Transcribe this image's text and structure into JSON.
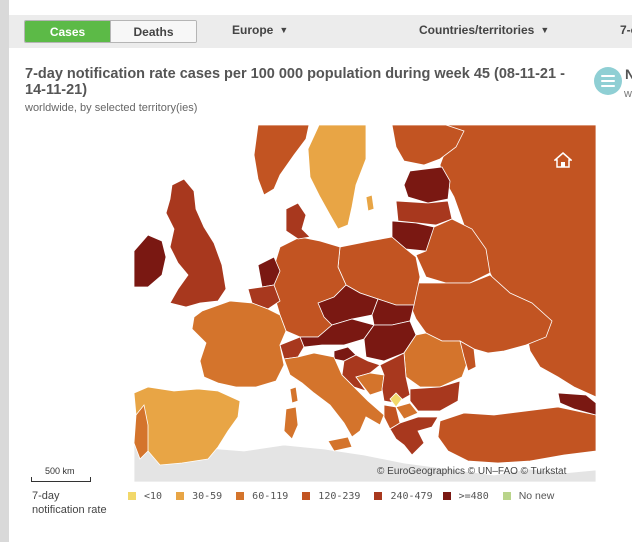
{
  "toolbar": {
    "cases_label": "Cases",
    "deaths_label": "Deaths",
    "region_label": "Europe",
    "countries_label": "Countries/territories",
    "clipped_label": "7-c"
  },
  "header": {
    "title": "7-day notification rate cases per 100 000 population during week 45 (08-11-21 - 14-11-21)",
    "subtitle": "worldwide, by selected territory(ies)",
    "clipped_title": "N",
    "clipped_subtitle": "w"
  },
  "map": {
    "scale_label": "500 km",
    "credits": "© EuroGeographics © UN–FAO © Turkstat"
  },
  "legend": {
    "title_line1": "7-day",
    "title_line2": "notification rate",
    "items": [
      {
        "label": "<10",
        "color": "#f2d86a"
      },
      {
        "label": "30-59",
        "color": "#e8a545"
      },
      {
        "label": "60-119",
        "color": "#d4742c"
      },
      {
        "label": "120-239",
        "color": "#c25422"
      },
      {
        "label": "240-479",
        "color": "#a8381e"
      },
      {
        "label": ">=480",
        "color": "#7a1812"
      },
      {
        "label": "No new",
        "color": "#b9d48a"
      }
    ]
  },
  "colors": {
    "accent_green": "#5cba47",
    "sea": "#ffffff",
    "nodata": "#e4e4e4"
  }
}
